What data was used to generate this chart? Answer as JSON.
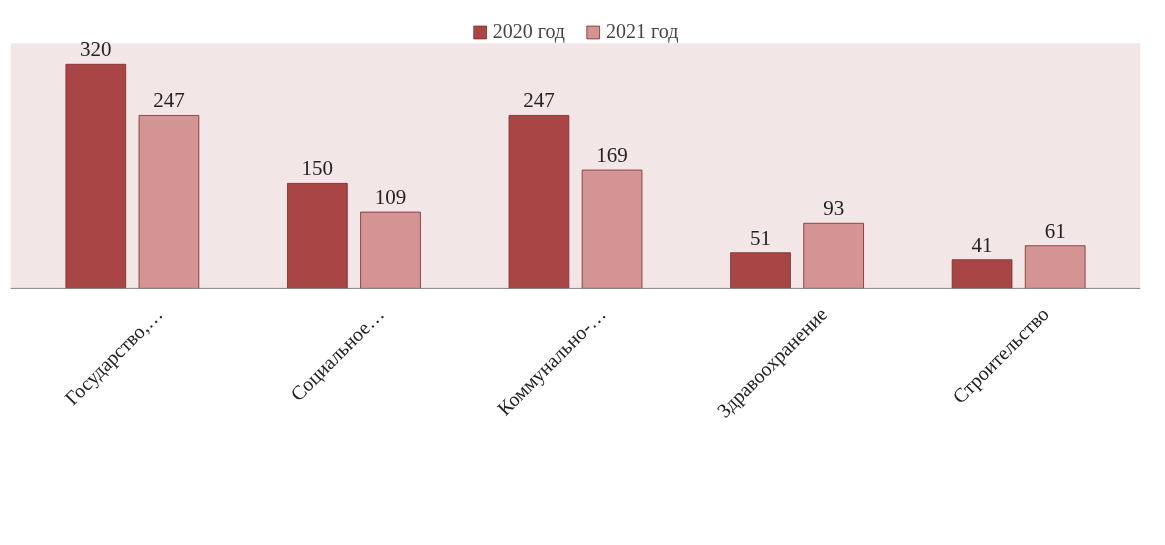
{
  "chart_data": {
    "type": "bar",
    "categories": [
      "Государство,…",
      "Социальное…",
      "Коммунально-…",
      "Здравоохранение",
      "Строительство"
    ],
    "series": [
      {
        "name": "2020 год",
        "color": "#a84646",
        "values": [
          320,
          150,
          247,
          51,
          41
        ]
      },
      {
        "name": "2021 год",
        "color": "#d49494",
        "values": [
          247,
          109,
          169,
          93,
          61
        ]
      }
    ],
    "data_labels": true,
    "legend": "top"
  }
}
